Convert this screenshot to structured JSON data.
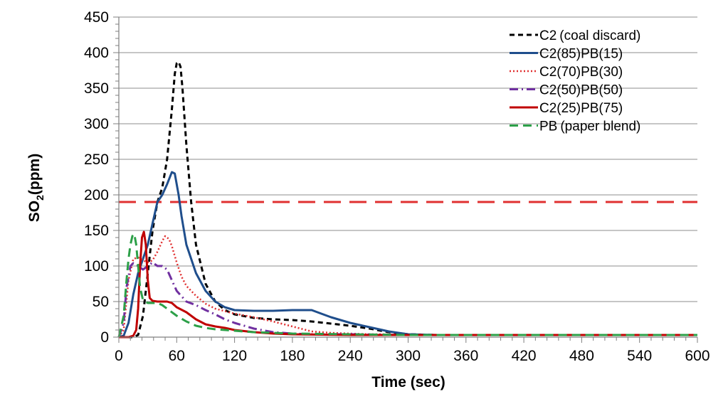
{
  "chart_data": {
    "type": "line",
    "title": "",
    "xlabel": "Time (sec)",
    "ylabel": {
      "main": "SO",
      "sub": "2",
      "tail": "(ppm)"
    },
    "xlim": [
      0,
      600
    ],
    "ylim": [
      0,
      450
    ],
    "x_ticks": [
      0,
      60,
      120,
      180,
      240,
      300,
      360,
      420,
      480,
      540,
      600
    ],
    "y_ticks": [
      0,
      50,
      100,
      150,
      200,
      250,
      300,
      350,
      400,
      450
    ],
    "grid": "horizontal",
    "legend_position": "top-right",
    "reference_line": {
      "y": 190,
      "color": "#e03030",
      "style": "long-dash"
    },
    "series": [
      {
        "name": "C2 (coal discard)",
        "label_main": "C2",
        "label_rest": "(coal discard)",
        "color": "#000000",
        "style": "dash",
        "x": [
          0,
          15,
          20,
          25,
          30,
          35,
          40,
          45,
          50,
          55,
          58,
          60,
          62,
          64,
          66,
          70,
          75,
          80,
          90,
          100,
          110,
          120,
          140,
          160,
          180,
          200,
          220,
          240,
          260,
          280,
          300,
          330,
          360,
          420,
          480,
          540,
          600
        ],
        "y": [
          0,
          0,
          3,
          30,
          90,
          150,
          190,
          210,
          250,
          320,
          370,
          385,
          387,
          380,
          350,
          270,
          190,
          130,
          75,
          50,
          38,
          32,
          27,
          25,
          24,
          22,
          19,
          16,
          12,
          7,
          4,
          3,
          3,
          3,
          3,
          3,
          3
        ]
      },
      {
        "name": "C2(85)PB(15)",
        "label_main": "C2(85)PB(15)",
        "label_rest": "",
        "color": "#1f4e8c",
        "style": "solid",
        "x": [
          0,
          5,
          10,
          15,
          20,
          25,
          30,
          35,
          40,
          45,
          50,
          55,
          58,
          62,
          65,
          70,
          80,
          90,
          100,
          110,
          120,
          140,
          160,
          180,
          200,
          210,
          220,
          240,
          260,
          280,
          300,
          330,
          360,
          420,
          480,
          540,
          600
        ],
        "y": [
          0,
          2,
          20,
          60,
          90,
          110,
          130,
          160,
          190,
          200,
          215,
          232,
          230,
          200,
          170,
          130,
          90,
          65,
          50,
          42,
          38,
          37,
          37,
          38,
          38,
          33,
          28,
          20,
          14,
          8,
          4,
          3,
          3,
          3,
          3,
          3,
          3
        ]
      },
      {
        "name": "C2(70)PB(30)",
        "label_main": "C2(70)PB(30)",
        "label_rest": "",
        "color": "#e03030",
        "style": "dot",
        "x": [
          0,
          5,
          10,
          15,
          20,
          25,
          30,
          35,
          40,
          45,
          48,
          52,
          55,
          60,
          65,
          70,
          80,
          90,
          100,
          120,
          140,
          160,
          180,
          200,
          220,
          240,
          260,
          280,
          300,
          360,
          420,
          480,
          540,
          600
        ],
        "y": [
          0,
          10,
          80,
          110,
          112,
          108,
          105,
          108,
          120,
          135,
          142,
          138,
          128,
          105,
          85,
          72,
          58,
          47,
          40,
          33,
          28,
          22,
          15,
          8,
          6,
          5,
          4,
          4,
          3,
          3,
          3,
          3,
          3,
          3
        ]
      },
      {
        "name": "C2(50)PB(50)",
        "label_main": "C2(50)PB(50)",
        "label_rest": "",
        "color": "#7030a0",
        "style": "dashdot",
        "x": [
          0,
          5,
          8,
          12,
          15,
          20,
          25,
          30,
          35,
          40,
          45,
          50,
          55,
          60,
          70,
          80,
          90,
          100,
          110,
          120,
          140,
          160,
          180,
          200,
          240,
          300,
          360,
          420,
          480,
          540,
          600
        ],
        "y": [
          0,
          20,
          70,
          100,
          104,
          100,
          95,
          100,
          105,
          100,
          100,
          95,
          80,
          65,
          50,
          45,
          38,
          32,
          25,
          20,
          12,
          7,
          5,
          4,
          4,
          3,
          3,
          3,
          3,
          3,
          3
        ]
      },
      {
        "name": "C2(25)PB(75)",
        "label_main": "C2(25)PB(75)",
        "label_rest": "",
        "color": "#c00000",
        "style": "solid",
        "x": [
          0,
          10,
          15,
          18,
          20,
          22,
          24,
          26,
          28,
          30,
          32,
          35,
          40,
          50,
          55,
          60,
          70,
          80,
          90,
          100,
          110,
          120,
          140,
          160,
          180,
          240,
          300,
          360,
          420,
          480,
          540,
          600
        ],
        "y": [
          0,
          0,
          2,
          10,
          40,
          100,
          140,
          148,
          130,
          80,
          55,
          51,
          50,
          50,
          48,
          42,
          35,
          25,
          18,
          15,
          13,
          10,
          7,
          5,
          4,
          3,
          3,
          3,
          3,
          3,
          3,
          3
        ]
      },
      {
        "name": "PB (paper blend)",
        "label_main": "PB",
        "label_rest": "(paper blend)",
        "color": "#2ca048",
        "style": "longdash",
        "x": [
          0,
          5,
          8,
          10,
          12,
          14,
          16,
          18,
          20,
          22,
          25,
          30,
          40,
          45,
          50,
          60,
          70,
          80,
          90,
          100,
          120,
          140,
          180,
          240,
          300,
          360,
          420,
          480,
          540,
          600
        ],
        "y": [
          0,
          30,
          80,
          110,
          130,
          142,
          145,
          130,
          100,
          70,
          52,
          48,
          48,
          45,
          40,
          30,
          22,
          16,
          13,
          11,
          9,
          7,
          5,
          4,
          3,
          3,
          3,
          3,
          3,
          3
        ]
      }
    ]
  }
}
